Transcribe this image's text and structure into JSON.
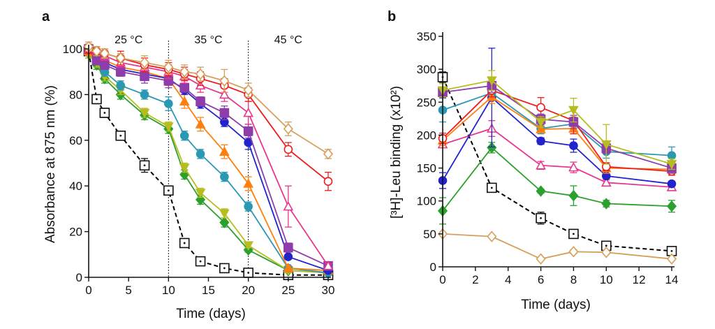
{
  "chart_data": [
    {
      "type": "line",
      "panel_label": "a",
      "xlabel": "Time (days)",
      "ylabel": "Absorbance at 875 nm (%)",
      "xlim": [
        0,
        30
      ],
      "ylim": [
        0,
        100
      ],
      "x_ticks": [
        0,
        5,
        10,
        15,
        20,
        25,
        30
      ],
      "y_ticks": [
        0,
        20,
        40,
        60,
        80,
        100
      ],
      "grid": false,
      "legend": "none",
      "period_markers": [
        {
          "label": "25 °C",
          "x_start": 0,
          "x_end": 10
        },
        {
          "label": "35 °C",
          "x_start": 10,
          "x_end": 20
        },
        {
          "label": "45 °C",
          "x_start": 20,
          "x_end": 30
        }
      ],
      "series": [
        {
          "color": "#000000",
          "marker": "open-square-dot",
          "dashed": true,
          "x": [
            0,
            1,
            2,
            4,
            7,
            10,
            12,
            14,
            17,
            20,
            25,
            30
          ],
          "y": [
            99,
            78,
            72,
            62,
            49,
            38,
            15,
            7,
            4,
            2,
            1,
            1
          ],
          "err": [
            2,
            2,
            2,
            2,
            3,
            2,
            1,
            1,
            1,
            1,
            1,
            1
          ]
        },
        {
          "color": "#2ca02c",
          "marker": "diamond",
          "x": [
            0,
            1,
            2,
            4,
            7,
            10,
            12,
            14,
            17,
            20,
            25,
            30
          ],
          "y": [
            98,
            93,
            87,
            80,
            71,
            65,
            45,
            34,
            24,
            12,
            3,
            2
          ],
          "err": [
            2,
            2,
            2,
            2,
            2,
            2,
            2,
            2,
            2,
            1,
            1,
            1
          ]
        },
        {
          "color": "#b7bd1f",
          "marker": "triangle-down",
          "x": [
            0,
            1,
            2,
            4,
            7,
            10,
            12,
            14,
            17,
            20,
            25,
            30
          ],
          "y": [
            98,
            94,
            88,
            82,
            72,
            66,
            48,
            37,
            28,
            14,
            3,
            2
          ],
          "err": [
            2,
            2,
            2,
            2,
            2,
            2,
            2,
            2,
            2,
            1,
            1,
            1
          ]
        },
        {
          "color": "#2a98b3",
          "marker": "circle",
          "x": [
            0,
            1,
            2,
            4,
            7,
            10,
            12,
            14,
            17,
            20,
            25,
            30
          ],
          "y": [
            99,
            95,
            90,
            84,
            80,
            76,
            62,
            54,
            44,
            31,
            4,
            2
          ],
          "err": [
            2,
            2,
            2,
            2,
            2,
            3,
            2,
            2,
            2,
            2,
            1,
            1
          ]
        },
        {
          "color": "#ff7f0e",
          "marker": "triangle-up",
          "x": [
            0,
            1,
            2,
            4,
            7,
            10,
            12,
            14,
            17,
            20,
            25,
            30
          ],
          "y": [
            99,
            97,
            95,
            92,
            90,
            87,
            77,
            67,
            55,
            41,
            4,
            3
          ],
          "err": [
            2,
            2,
            2,
            3,
            3,
            3,
            3,
            3,
            3,
            3,
            1,
            1
          ]
        },
        {
          "color": "#2323cc",
          "marker": "circle",
          "x": [
            0,
            1,
            2,
            4,
            7,
            10,
            12,
            14,
            17,
            20,
            25,
            30
          ],
          "y": [
            100,
            97,
            94,
            91,
            89,
            87,
            82,
            76,
            68,
            59,
            9,
            3
          ],
          "err": [
            2,
            2,
            2,
            2,
            2,
            2,
            2,
            2,
            2,
            3,
            1,
            1
          ]
        },
        {
          "color": "#8e3dab",
          "marker": "square",
          "x": [
            0,
            1,
            2,
            4,
            7,
            10,
            12,
            14,
            17,
            20,
            25,
            30
          ],
          "y": [
            100,
            95,
            93,
            90,
            88,
            86,
            83,
            77,
            72,
            64,
            13,
            5
          ],
          "err": [
            2,
            2,
            2,
            2,
            3,
            3,
            2,
            2,
            3,
            3,
            2,
            1
          ]
        },
        {
          "color": "#e8368f",
          "marker": "open-triangle-up",
          "x": [
            0,
            1,
            2,
            4,
            7,
            10,
            12,
            14,
            17,
            20,
            25,
            30
          ],
          "y": [
            100,
            99,
            97,
            94,
            92,
            90,
            88,
            84,
            80,
            72,
            31,
            5
          ],
          "err": [
            2,
            2,
            2,
            2,
            2,
            3,
            3,
            3,
            3,
            5,
            9,
            1
          ]
        },
        {
          "color": "#ee1c1c",
          "marker": "open-circle",
          "x": [
            0,
            1,
            2,
            4,
            7,
            10,
            12,
            14,
            17,
            20,
            25,
            30
          ],
          "y": [
            100,
            99,
            98,
            96,
            93,
            91,
            89,
            87,
            84,
            80,
            56,
            42
          ],
          "err": [
            2,
            2,
            2,
            3,
            3,
            3,
            3,
            3,
            3,
            3,
            3,
            4
          ]
        },
        {
          "color": "#d4a15a",
          "marker": "open-diamond",
          "x": [
            0,
            1,
            2,
            4,
            7,
            10,
            12,
            14,
            17,
            20,
            25,
            30
          ],
          "y": [
            101,
            99,
            98,
            96,
            94,
            92,
            90,
            89,
            86,
            82,
            65,
            54
          ],
          "err": [
            2,
            2,
            2,
            2,
            3,
            3,
            3,
            3,
            5,
            3,
            3,
            2
          ]
        }
      ]
    },
    {
      "type": "line",
      "panel_label": "b",
      "xlabel": "Time (days)",
      "ylabel": "[³H]-Leu binding (x10²)",
      "xlim": [
        0,
        14
      ],
      "ylim": [
        0,
        350
      ],
      "x_ticks": [
        0,
        2,
        4,
        6,
        8,
        10,
        12,
        14
      ],
      "y_ticks": [
        0,
        50,
        100,
        150,
        200,
        250,
        300,
        350
      ],
      "grid": false,
      "legend": "none",
      "series": [
        {
          "color": "#000000",
          "marker": "open-square-dot",
          "dashed": true,
          "x": [
            0,
            3,
            6,
            8,
            10,
            14
          ],
          "y": [
            288,
            120,
            74,
            50,
            32,
            24
          ],
          "err": [
            8,
            4,
            9,
            6,
            3,
            2
          ]
        },
        {
          "color": "#d4a15a",
          "marker": "open-diamond",
          "x": [
            0,
            3,
            6,
            8,
            10,
            14
          ],
          "y": [
            50,
            46,
            12,
            23,
            22,
            12
          ],
          "err": [
            2,
            2,
            2,
            3,
            3,
            2
          ]
        },
        {
          "color": "#2ca02c",
          "marker": "diamond",
          "x": [
            0,
            3,
            6,
            8,
            10,
            14
          ],
          "y": [
            85,
            181,
            115,
            108,
            96,
            92
          ],
          "err": [
            20,
            8,
            3,
            15,
            5,
            9
          ]
        },
        {
          "color": "#e8368f",
          "marker": "open-triangle-up",
          "x": [
            0,
            3,
            6,
            8,
            10,
            14
          ],
          "y": [
            186,
            210,
            154,
            151,
            128,
            121
          ],
          "err": [
            4,
            12,
            6,
            8,
            4,
            4
          ]
        },
        {
          "color": "#2323cc",
          "marker": "circle",
          "x": [
            0,
            3,
            6,
            8,
            10,
            14
          ],
          "y": [
            131,
            257,
            191,
            184,
            138,
            126
          ],
          "err": [
            12,
            75,
            5,
            10,
            4,
            4
          ]
        },
        {
          "color": "#2a98b3",
          "marker": "circle",
          "x": [
            0,
            3,
            6,
            8,
            10,
            14
          ],
          "y": [
            238,
            264,
            210,
            217,
            175,
            169
          ],
          "err": [
            18,
            10,
            8,
            10,
            10,
            13
          ]
        },
        {
          "color": "#ff7f0e",
          "marker": "triangle-up",
          "x": [
            0,
            3,
            6,
            8,
            10,
            14
          ],
          "y": [
            192,
            258,
            209,
            210,
            150,
            148
          ],
          "err": [
            8,
            10,
            5,
            8,
            8,
            6
          ]
        },
        {
          "color": "#ee1c1c",
          "marker": "open-circle",
          "x": [
            0,
            3,
            6,
            8,
            10,
            14
          ],
          "y": [
            195,
            268,
            242,
            222,
            152,
            145
          ],
          "err": [
            8,
            10,
            15,
            20,
            6,
            6
          ]
        },
        {
          "color": "#8e3dab",
          "marker": "square",
          "x": [
            0,
            3,
            6,
            8,
            10,
            14
          ],
          "y": [
            265,
            275,
            224,
            220,
            180,
            150
          ],
          "err": [
            8,
            10,
            8,
            10,
            8,
            8
          ]
        },
        {
          "color": "#b7bd1f",
          "marker": "triangle-down",
          "x": [
            0,
            3,
            6,
            8,
            10,
            14
          ],
          "y": [
            268,
            283,
            220,
            238,
            186,
            156
          ],
          "err": [
            10,
            15,
            8,
            18,
            30,
            8
          ]
        }
      ]
    }
  ]
}
